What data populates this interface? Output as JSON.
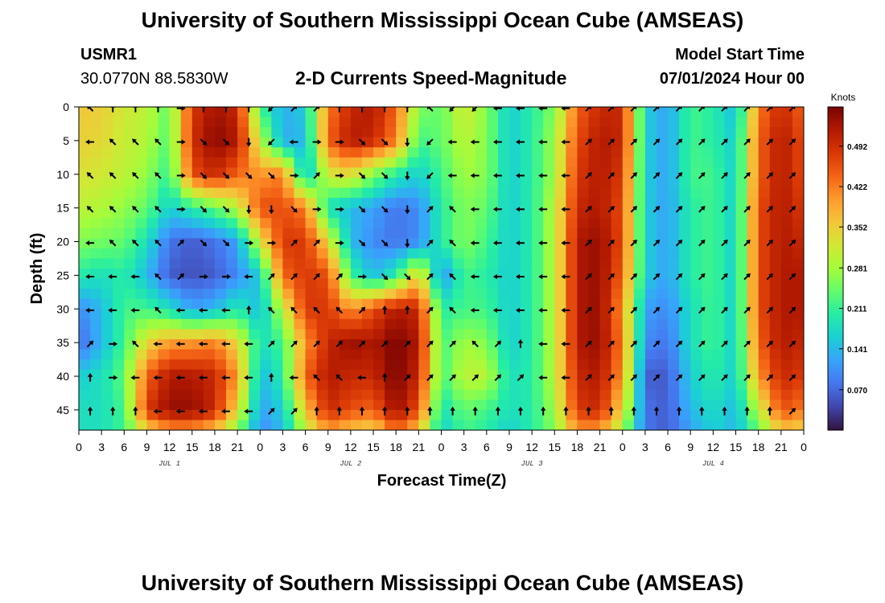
{
  "header": {
    "title": "University of Southern Mississippi Ocean Cube (AMSEAS)",
    "station_id": "USMR1",
    "coordinates": "30.0770N  88.5830W",
    "plot_title": "2-D Currents Speed-Magnitude",
    "model_start_label": "Model Start Time",
    "model_start_value": "07/01/2024 Hour 00"
  },
  "footer": {
    "title": "University of Southern Mississippi Ocean Cube (AMSEAS)"
  },
  "chart_data": {
    "type": "heatmap",
    "title": "2-D Currents Speed-Magnitude",
    "xlabel": "Forecast Time(Z)",
    "ylabel": "Depth (ft)",
    "xlim": [
      0,
      96
    ],
    "ylim": [
      0,
      48
    ],
    "x_ticks": [
      0,
      3,
      6,
      9,
      12,
      15,
      18,
      21,
      24,
      27,
      30,
      33,
      36,
      39,
      42,
      45,
      48,
      51,
      54,
      57,
      60,
      63,
      66,
      69,
      72,
      75,
      78,
      81,
      84,
      87,
      90,
      93,
      96
    ],
    "x_tick_labels": [
      "0",
      "3",
      "6",
      "9",
      "12",
      "15",
      "18",
      "21",
      "0",
      "3",
      "6",
      "9",
      "12",
      "15",
      "18",
      "21",
      "0",
      "3",
      "6",
      "9",
      "12",
      "15",
      "18",
      "21",
      "0",
      "3",
      "6",
      "9",
      "12",
      "15",
      "18",
      "21",
      "0"
    ],
    "y_ticks": [
      0,
      5,
      10,
      15,
      20,
      25,
      30,
      35,
      40,
      45
    ],
    "y_tick_labels": [
      "0",
      "5",
      "10",
      "15",
      "20",
      "25",
      "30",
      "35",
      "40",
      "45"
    ],
    "day_labels": [
      {
        "hour": 12,
        "label": "JUL 1"
      },
      {
        "hour": 36,
        "label": "JUL 2"
      },
      {
        "hour": 60,
        "label": "JUL 3"
      },
      {
        "hour": 84,
        "label": "JUL 4"
      }
    ],
    "colorbar": {
      "unit": "Knots",
      "min": 0.0,
      "max": 0.56,
      "ticks": [
        0.07,
        0.141,
        0.211,
        0.281,
        0.352,
        0.422,
        0.492
      ],
      "tick_labels": [
        "0.070",
        "0.141",
        "0.211",
        "0.281",
        "0.352",
        "0.422",
        "0.492"
      ],
      "colormap": [
        "#30123b",
        "#4145ab",
        "#4675ed",
        "#39a2fc",
        "#1bcfd4",
        "#24eca6",
        "#61fc6c",
        "#a4fc3b",
        "#d1e834",
        "#f3c63a",
        "#fe9b2d",
        "#f36315",
        "#d93806",
        "#b11901",
        "#7a0403"
      ]
    },
    "speed_grid": {
      "depths_ft": [
        0,
        5,
        10,
        15,
        20,
        25,
        30,
        35,
        40,
        45,
        48
      ],
      "hours": [
        0,
        3,
        6,
        9,
        12,
        15,
        18,
        21,
        24,
        27,
        30,
        33,
        36,
        39,
        42,
        45,
        48,
        51,
        54,
        57,
        60,
        63,
        66,
        69,
        72,
        75,
        78,
        81,
        84,
        87,
        90,
        93,
        96
      ],
      "values_knots": [
        [
          0.36,
          0.35,
          0.32,
          0.3,
          0.24,
          0.48,
          0.53,
          0.5,
          0.22,
          0.13,
          0.16,
          0.42,
          0.5,
          0.52,
          0.44,
          0.26,
          0.24,
          0.32,
          0.26,
          0.16,
          0.2,
          0.26,
          0.44,
          0.5,
          0.5,
          0.16,
          0.12,
          0.22,
          0.2,
          0.14,
          0.42,
          0.5,
          0.44
        ],
        [
          0.35,
          0.34,
          0.31,
          0.29,
          0.23,
          0.49,
          0.55,
          0.52,
          0.3,
          0.13,
          0.14,
          0.44,
          0.52,
          0.5,
          0.42,
          0.22,
          0.24,
          0.3,
          0.26,
          0.16,
          0.2,
          0.28,
          0.46,
          0.52,
          0.5,
          0.16,
          0.12,
          0.22,
          0.2,
          0.16,
          0.44,
          0.52,
          0.46
        ],
        [
          0.33,
          0.32,
          0.3,
          0.27,
          0.21,
          0.46,
          0.5,
          0.44,
          0.4,
          0.42,
          0.14,
          0.32,
          0.34,
          0.26,
          0.2,
          0.16,
          0.22,
          0.28,
          0.26,
          0.16,
          0.2,
          0.28,
          0.48,
          0.52,
          0.48,
          0.16,
          0.12,
          0.22,
          0.22,
          0.16,
          0.44,
          0.52,
          0.46
        ],
        [
          0.3,
          0.29,
          0.27,
          0.24,
          0.16,
          0.2,
          0.24,
          0.3,
          0.46,
          0.46,
          0.42,
          0.18,
          0.14,
          0.12,
          0.08,
          0.1,
          0.2,
          0.26,
          0.24,
          0.16,
          0.2,
          0.3,
          0.5,
          0.52,
          0.46,
          0.16,
          0.12,
          0.2,
          0.22,
          0.16,
          0.46,
          0.52,
          0.48
        ],
        [
          0.26,
          0.25,
          0.24,
          0.18,
          0.08,
          0.06,
          0.08,
          0.12,
          0.32,
          0.48,
          0.48,
          0.34,
          0.14,
          0.1,
          0.08,
          0.1,
          0.2,
          0.26,
          0.22,
          0.16,
          0.2,
          0.3,
          0.52,
          0.54,
          0.46,
          0.16,
          0.12,
          0.2,
          0.22,
          0.16,
          0.46,
          0.52,
          0.5
        ],
        [
          0.2,
          0.18,
          0.2,
          0.14,
          0.06,
          0.05,
          0.06,
          0.1,
          0.16,
          0.44,
          0.48,
          0.46,
          0.22,
          0.14,
          0.2,
          0.36,
          0.1,
          0.22,
          0.2,
          0.16,
          0.2,
          0.3,
          0.52,
          0.54,
          0.44,
          0.16,
          0.12,
          0.2,
          0.22,
          0.16,
          0.46,
          0.52,
          0.52
        ],
        [
          0.1,
          0.14,
          0.22,
          0.22,
          0.18,
          0.12,
          0.14,
          0.2,
          0.14,
          0.3,
          0.48,
          0.48,
          0.4,
          0.46,
          0.52,
          0.5,
          0.2,
          0.22,
          0.22,
          0.16,
          0.2,
          0.3,
          0.52,
          0.54,
          0.4,
          0.12,
          0.1,
          0.18,
          0.22,
          0.16,
          0.46,
          0.52,
          0.52
        ],
        [
          0.07,
          0.14,
          0.22,
          0.34,
          0.4,
          0.4,
          0.42,
          0.34,
          0.18,
          0.22,
          0.4,
          0.5,
          0.54,
          0.52,
          0.56,
          0.52,
          0.22,
          0.28,
          0.26,
          0.16,
          0.2,
          0.3,
          0.52,
          0.54,
          0.42,
          0.1,
          0.08,
          0.18,
          0.22,
          0.16,
          0.44,
          0.52,
          0.5
        ],
        [
          0.16,
          0.18,
          0.24,
          0.44,
          0.52,
          0.52,
          0.5,
          0.4,
          0.14,
          0.2,
          0.44,
          0.52,
          0.5,
          0.5,
          0.56,
          0.5,
          0.22,
          0.3,
          0.3,
          0.18,
          0.2,
          0.3,
          0.5,
          0.52,
          0.4,
          0.06,
          0.06,
          0.16,
          0.2,
          0.16,
          0.4,
          0.5,
          0.48
        ],
        [
          0.18,
          0.18,
          0.22,
          0.48,
          0.54,
          0.54,
          0.5,
          0.34,
          0.12,
          0.16,
          0.36,
          0.5,
          0.46,
          0.44,
          0.54,
          0.46,
          0.18,
          0.24,
          0.22,
          0.18,
          0.2,
          0.28,
          0.48,
          0.5,
          0.34,
          0.08,
          0.06,
          0.14,
          0.18,
          0.14,
          0.3,
          0.46,
          0.42
        ],
        [
          0.18,
          0.18,
          0.22,
          0.34,
          0.4,
          0.4,
          0.36,
          0.26,
          0.1,
          0.14,
          0.3,
          0.4,
          0.36,
          0.34,
          0.44,
          0.36,
          0.16,
          0.22,
          0.2,
          0.16,
          0.2,
          0.26,
          0.4,
          0.4,
          0.28,
          0.08,
          0.06,
          0.12,
          0.16,
          0.14,
          0.24,
          0.36,
          0.34
        ]
      ]
    },
    "direction_field": {
      "depths_ft": [
        0,
        5,
        10,
        15,
        20,
        25,
        30,
        35,
        40,
        45
      ],
      "hours": [
        0,
        3,
        6,
        9,
        12,
        15,
        18,
        21,
        24,
        27,
        30,
        33,
        36,
        39,
        42,
        45,
        48,
        51,
        54,
        57,
        60,
        63,
        66,
        69,
        72,
        75,
        78,
        81,
        84,
        87,
        90,
        93
      ],
      "directions_deg": [
        [
          45,
          90,
          90,
          90,
          180,
          90,
          90,
          90,
          315,
          135,
          135,
          90,
          90,
          90,
          90,
          45,
          315,
          315,
          0,
          0,
          0,
          0,
          135,
          135,
          135,
          135,
          135,
          135,
          135,
          135,
          135,
          135
        ],
        [
          0,
          45,
          45,
          45,
          180,
          225,
          225,
          270,
          315,
          0,
          180,
          180,
          225,
          225,
          270,
          315,
          0,
          0,
          0,
          0,
          0,
          0,
          135,
          135,
          135,
          135,
          135,
          135,
          135,
          135,
          135,
          135
        ],
        [
          45,
          45,
          45,
          45,
          180,
          225,
          225,
          225,
          225,
          180,
          135,
          180,
          225,
          225,
          270,
          315,
          0,
          0,
          0,
          0,
          0,
          0,
          135,
          135,
          135,
          135,
          135,
          135,
          135,
          135,
          135,
          135
        ],
        [
          45,
          45,
          45,
          45,
          180,
          225,
          225,
          270,
          270,
          225,
          180,
          180,
          225,
          225,
          270,
          135,
          45,
          0,
          0,
          0,
          0,
          0,
          135,
          135,
          135,
          135,
          135,
          135,
          135,
          135,
          135,
          135
        ],
        [
          0,
          45,
          45,
          45,
          135,
          225,
          225,
          180,
          180,
          135,
          135,
          180,
          225,
          225,
          270,
          135,
          45,
          0,
          0,
          0,
          0,
          0,
          135,
          135,
          135,
          135,
          135,
          135,
          135,
          135,
          135,
          135
        ],
        [
          0,
          0,
          0,
          45,
          135,
          180,
          180,
          0,
          135,
          135,
          135,
          135,
          180,
          225,
          225,
          135,
          45,
          0,
          0,
          0,
          0,
          0,
          135,
          135,
          135,
          135,
          135,
          135,
          135,
          135,
          135,
          135
        ],
        [
          0,
          0,
          0,
          45,
          0,
          0,
          0,
          90,
          45,
          45,
          45,
          45,
          135,
          90,
          90,
          135,
          45,
          0,
          0,
          0,
          0,
          0,
          135,
          135,
          135,
          135,
          135,
          135,
          135,
          135,
          135,
          135
        ],
        [
          135,
          180,
          45,
          0,
          0,
          0,
          0,
          0,
          135,
          135,
          135,
          135,
          135,
          135,
          135,
          135,
          135,
          45,
          135,
          90,
          0,
          0,
          135,
          135,
          135,
          135,
          135,
          135,
          135,
          135,
          135,
          135
        ],
        [
          90,
          180,
          0,
          0,
          0,
          0,
          0,
          0,
          90,
          0,
          45,
          45,
          0,
          90,
          135,
          135,
          135,
          135,
          135,
          135,
          0,
          0,
          135,
          135,
          135,
          135,
          135,
          135,
          135,
          135,
          135,
          135
        ],
        [
          90,
          90,
          90,
          0,
          0,
          0,
          0,
          0,
          135,
          135,
          90,
          90,
          90,
          90,
          90,
          90,
          90,
          90,
          90,
          90,
          90,
          90,
          90,
          90,
          90,
          90,
          90,
          90,
          90,
          90,
          90,
          135
        ]
      ]
    }
  }
}
